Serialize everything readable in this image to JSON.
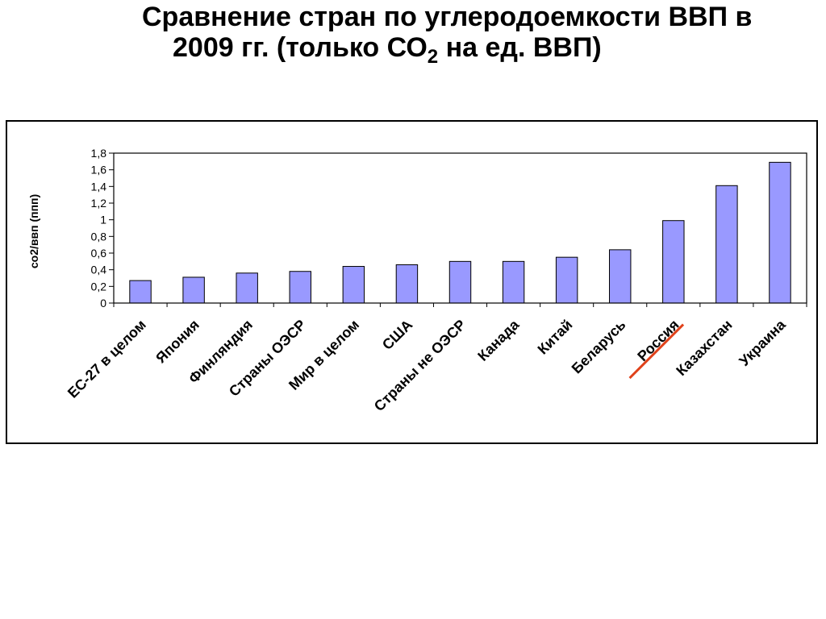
{
  "slide": {
    "title_line1": "Сравнение стран по углеродоемкости ВВП в",
    "title_line2_pre": "2009 гг. (только СО",
    "title_line2_sub": "2",
    "title_line2_post": " на ед. ВВП)"
  },
  "chart_data": {
    "type": "bar",
    "title": "",
    "xlabel": "",
    "ylabel": "со2/ввп (ппп)",
    "ylim": [
      0,
      1.8
    ],
    "yticks": [
      "0",
      "0,2",
      "0,4",
      "0,6",
      "0,8",
      "1",
      "1,2",
      "1,4",
      "1,6",
      "1,8"
    ],
    "grid": false,
    "legend": "none",
    "bar_color": "#9999ff",
    "highlight_color": "#e0421b",
    "highlight_category": "Россия",
    "categories": [
      "ЕС-27 в целом",
      "Япония",
      "Финляндия",
      "Страны ОЭСР",
      "Мир в целом",
      "США",
      "Страны не ОЭСР",
      "Канада",
      "Китай",
      "Беларусь",
      "Россия",
      "Казахстан",
      "Украина"
    ],
    "values": [
      0.27,
      0.31,
      0.36,
      0.38,
      0.44,
      0.46,
      0.5,
      0.5,
      0.55,
      0.64,
      0.99,
      1.41,
      1.69
    ]
  }
}
